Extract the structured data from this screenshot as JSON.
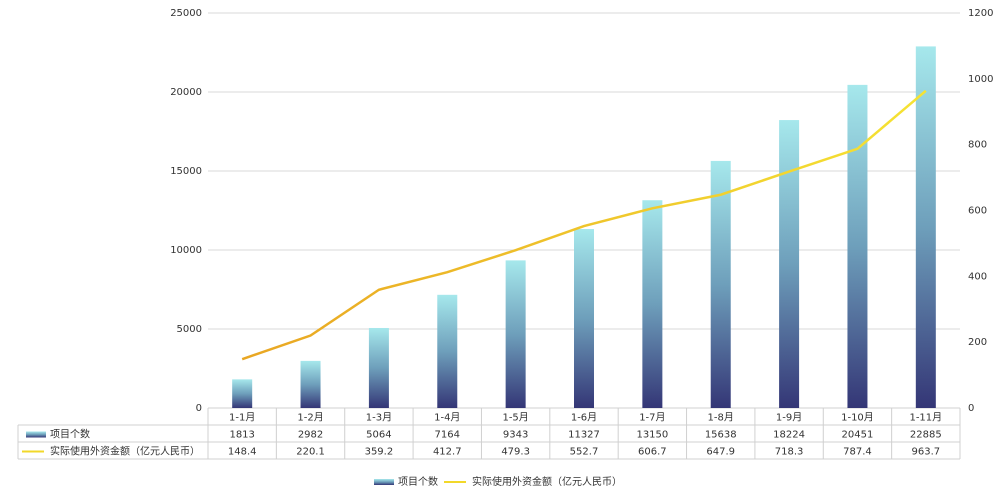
{
  "chart_data": {
    "type": "bar",
    "categories": [
      "1-1月",
      "1-2月",
      "1-3月",
      "1-4月",
      "1-5月",
      "1-6月",
      "1-7月",
      "1-8月",
      "1-9月",
      "1-10月",
      "1-11月"
    ],
    "series": [
      {
        "name": "项目个数",
        "type": "bar",
        "color": "#6fa9bc",
        "values": [
          1813,
          2982,
          5064,
          7164,
          9343,
          11327,
          13150,
          15638,
          18224,
          20451,
          22885
        ]
      },
      {
        "name": "实际使用外资金额（亿元人民币）",
        "type": "line",
        "axis": "y2",
        "color": "#f2d82a",
        "values": [
          148.4,
          220.1,
          359.2,
          412.7,
          479.3,
          552.7,
          606.7,
          647.9,
          718.3,
          787.4,
          963.7
        ]
      }
    ],
    "ylim": [
      0,
      25000
    ],
    "yticks": [
      0,
      5000,
      10000,
      15000,
      20000,
      25000
    ],
    "y2lim": [
      0,
      1200
    ],
    "y2ticks": [
      0,
      200,
      400,
      600,
      800,
      1000,
      1200
    ],
    "grid": true,
    "legend": "bottom"
  }
}
